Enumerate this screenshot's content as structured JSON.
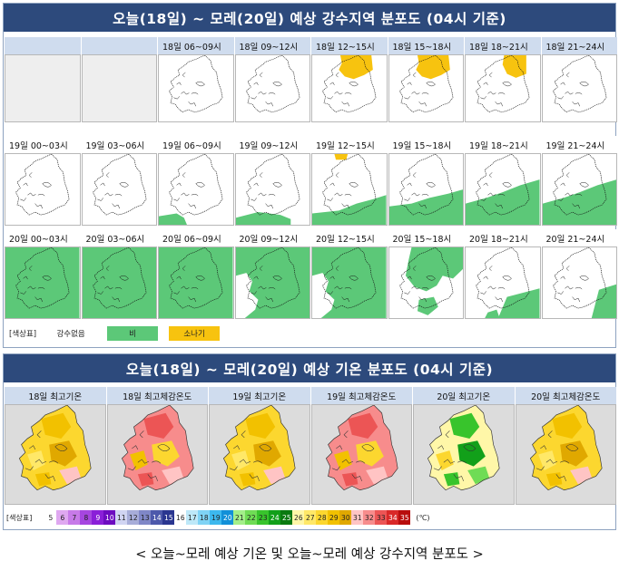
{
  "rain": {
    "title": "오늘(18일) ~ 모레(20일) 예상 강수지역 분포도 (04시 기준)",
    "rows": [
      {
        "cells": [
          {
            "label": "",
            "fill": "none"
          },
          {
            "label": "",
            "fill": "none"
          },
          {
            "label": "18일 06~09시",
            "fill": "none"
          },
          {
            "label": "18일 09~12시",
            "fill": "none"
          },
          {
            "label": "18일 12~15시",
            "fill": "shower_north"
          },
          {
            "label": "18일 15~18시",
            "fill": "shower_north"
          },
          {
            "label": "18일 18~21시",
            "fill": "shower_ne"
          },
          {
            "label": "18일 21~24시",
            "fill": "none"
          }
        ]
      },
      {
        "cells": [
          {
            "label": "19일 00~03시",
            "fill": "none"
          },
          {
            "label": "19일 03~06시",
            "fill": "none"
          },
          {
            "label": "19일 06~09시",
            "fill": "rain_sw_small"
          },
          {
            "label": "19일 09~12시",
            "fill": "rain_south_small"
          },
          {
            "label": "19일 12~15시",
            "fill": "rain_south_shower"
          },
          {
            "label": "19일 15~18시",
            "fill": "rain_south"
          },
          {
            "label": "19일 18~21시",
            "fill": "rain_south_big"
          },
          {
            "label": "19일 21~24시",
            "fill": "rain_south_big"
          }
        ]
      },
      {
        "cells": [
          {
            "label": "20일 00~03시",
            "fill": "rain_full"
          },
          {
            "label": "20일 03~06시",
            "fill": "rain_full"
          },
          {
            "label": "20일 06~09시",
            "fill": "rain_full"
          },
          {
            "label": "20일 09~12시",
            "fill": "rain_partial"
          },
          {
            "label": "20일 12~15시",
            "fill": "rain_partial"
          },
          {
            "label": "20일 15~18시",
            "fill": "rain_patchy"
          },
          {
            "label": "20일 18~21시",
            "fill": "rain_east"
          },
          {
            "label": "20일 21~24시",
            "fill": "rain_east_small"
          }
        ]
      }
    ],
    "legend": {
      "label": "[색상표]",
      "items": [
        {
          "label": "강수없음",
          "color": "#ffffff"
        },
        {
          "label": "비",
          "color": "#5cc878"
        },
        {
          "label": "소나기",
          "color": "#f7c30f"
        }
      ]
    }
  },
  "temp": {
    "title": "오늘(18일) ~ 모레(20일) 예상 기온 분포도 (04시 기준)",
    "panels": [
      {
        "label": "18일 최고기온",
        "palette": "warm"
      },
      {
        "label": "18일 최고체감온도",
        "palette": "hot"
      },
      {
        "label": "19일 최고기온",
        "palette": "warm"
      },
      {
        "label": "19일 최고체감온도",
        "palette": "hot"
      },
      {
        "label": "20일 최고기온",
        "palette": "mixed"
      },
      {
        "label": "20일 최고체감온도",
        "palette": "warm"
      }
    ],
    "legend": {
      "label": "[색상표]",
      "unit": "(℃)",
      "ticks": [
        {
          "v": "5",
          "c": "#ffffff"
        },
        {
          "v": "6",
          "c": "#dfa8f0"
        },
        {
          "v": "7",
          "c": "#c77ae8"
        },
        {
          "v": "8",
          "c": "#a646e0"
        },
        {
          "v": "9",
          "c": "#8a1fd8"
        },
        {
          "v": "10",
          "c": "#6d0cc0"
        },
        {
          "v": "11",
          "c": "#d0d4f2"
        },
        {
          "v": "12",
          "c": "#a7add9"
        },
        {
          "v": "13",
          "c": "#7f87c7"
        },
        {
          "v": "14",
          "c": "#4d59ab"
        },
        {
          "v": "15",
          "c": "#2a3690"
        },
        {
          "v": "16",
          "c": "#ffffff"
        },
        {
          "v": "17",
          "c": "#bde8f8"
        },
        {
          "v": "18",
          "c": "#7fd3f5"
        },
        {
          "v": "19",
          "c": "#3cb8ee"
        },
        {
          "v": "20",
          "c": "#1190d8"
        },
        {
          "v": "21",
          "c": "#a3ef8a"
        },
        {
          "v": "22",
          "c": "#6fdc55"
        },
        {
          "v": "23",
          "c": "#38c42c"
        },
        {
          "v": "24",
          "c": "#12a01a"
        },
        {
          "v": "25",
          "c": "#0a7a10"
        },
        {
          "v": "26",
          "c": "#fff7a8"
        },
        {
          "v": "27",
          "c": "#ffe868"
        },
        {
          "v": "28",
          "c": "#fcd72f"
        },
        {
          "v": "29",
          "c": "#f2c100"
        },
        {
          "v": "30",
          "c": "#e0a800"
        },
        {
          "v": "31",
          "c": "#ffc4c4"
        },
        {
          "v": "32",
          "c": "#f78c8c"
        },
        {
          "v": "33",
          "c": "#ec5555"
        },
        {
          "v": "34",
          "c": "#d92828"
        },
        {
          "v": "35",
          "c": "#b80d0d"
        }
      ]
    }
  },
  "caption": "< 오늘~모레 예상 기온 및 오늘~모레 예상 강수지역 분포도 >"
}
